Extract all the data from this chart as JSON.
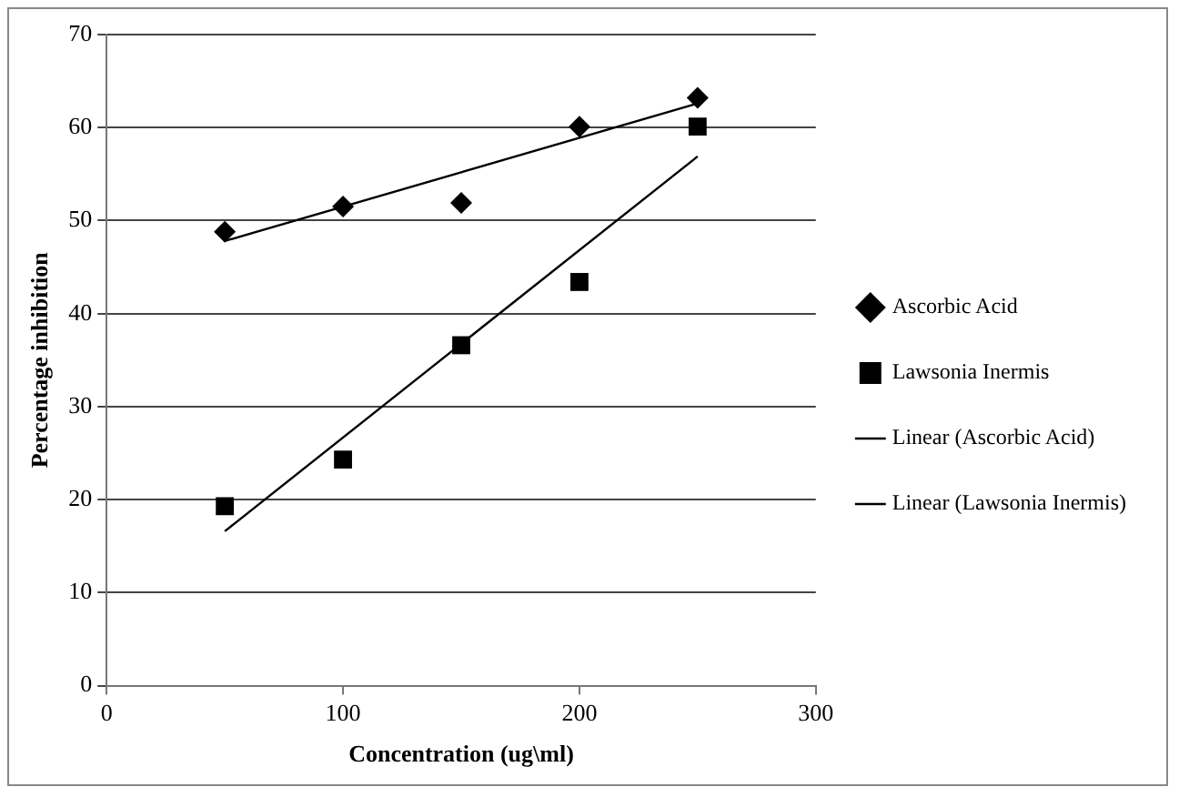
{
  "chart_data": {
    "type": "scatter",
    "xlabel": "Concentration (ug\\ml)",
    "ylabel": "Percentage inhibition",
    "xlim": [
      0,
      300
    ],
    "xticks": [
      0,
      100,
      200,
      300
    ],
    "ylim": [
      0,
      70
    ],
    "yticks": [
      0,
      10,
      20,
      30,
      40,
      50,
      60,
      70
    ],
    "grid": "y",
    "legend": "right",
    "series": [
      {
        "name": "Ascorbic Acid",
        "type": "scatter",
        "marker": "diamond",
        "color": "#000000",
        "x": [
          50,
          100,
          150,
          200,
          250
        ],
        "values": [
          48.8,
          51.5,
          51.9,
          60.1,
          63.2
        ]
      },
      {
        "name": "Lawsonia Inermis",
        "type": "scatter",
        "marker": "square",
        "color": "#000000",
        "x": [
          50,
          100,
          150,
          200,
          250
        ],
        "values": [
          19.3,
          24.3,
          36.6,
          43.4,
          60.1
        ]
      },
      {
        "name": "Linear (Ascorbic Acid)",
        "type": "line",
        "marker": "none",
        "line_style": "solid",
        "color": "#000000",
        "x": [
          50,
          250
        ],
        "values": [
          47.8,
          62.6
        ]
      },
      {
        "name": "Linear (Lawsonia Inermis)",
        "type": "line",
        "marker": "none",
        "line_style": "solid",
        "color": "#000000",
        "x": [
          50,
          250
        ],
        "values": [
          16.6,
          56.9
        ]
      }
    ]
  }
}
